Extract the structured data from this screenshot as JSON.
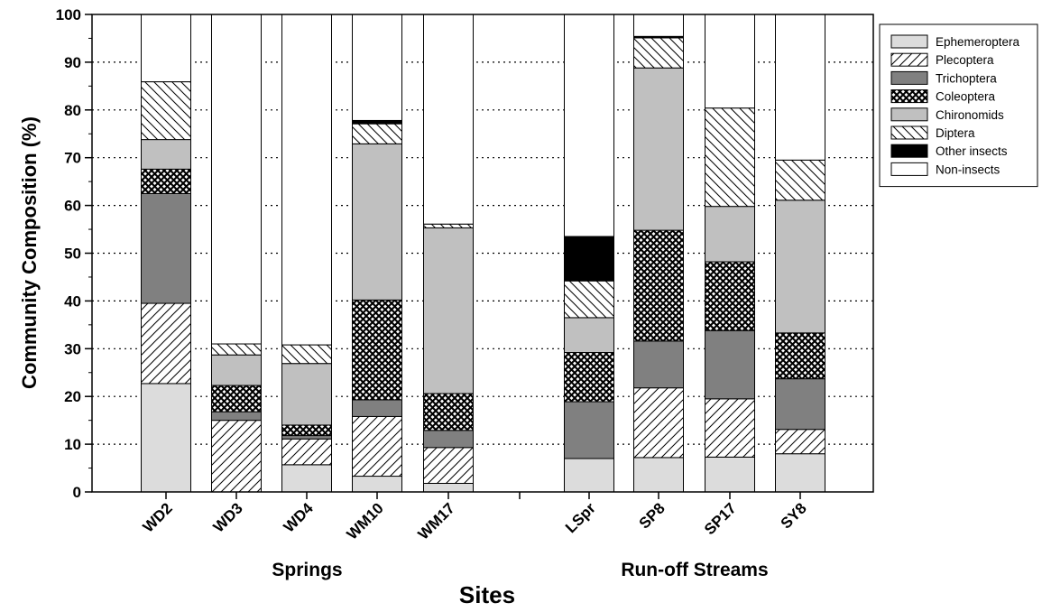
{
  "chart_data": {
    "type": "bar",
    "stacked": true,
    "ylabel": "Community Composition (%)",
    "xlabel": "Sites",
    "ylim": [
      0,
      100
    ],
    "yticks": [
      0,
      10,
      20,
      30,
      40,
      50,
      60,
      70,
      80,
      90,
      100
    ],
    "grid": "horizontal dotted",
    "legend_position": "right",
    "categories": [
      "WD2",
      "WD3",
      "WD4",
      "WM10",
      "WM17",
      "",
      "LSpr",
      "SP8",
      "SP17",
      "SY8"
    ],
    "groups": [
      {
        "label": "Springs",
        "categories": [
          "WD2",
          "WD3",
          "WD4",
          "WM10",
          "WM17"
        ]
      },
      {
        "label": "Run-off Streams",
        "categories": [
          "LSpr",
          "SP8",
          "SP17",
          "SY8"
        ]
      }
    ],
    "series": [
      {
        "name": "Ephemeroptera",
        "fill": "light-gray",
        "values": [
          22.7,
          0,
          5.7,
          3.3,
          1.8,
          null,
          7.0,
          7.2,
          7.3,
          8.0
        ]
      },
      {
        "name": "Plecoptera",
        "fill": "hatch-forward",
        "values": [
          16.8,
          15.0,
          5.4,
          12.5,
          7.5,
          null,
          0,
          14.6,
          12.2,
          5.1
        ]
      },
      {
        "name": "Trichoptera",
        "fill": "dark-gray",
        "values": [
          23.0,
          1.8,
          0.7,
          3.5,
          3.6,
          null,
          11.9,
          9.8,
          14.3,
          10.6
        ]
      },
      {
        "name": "Coleoptera",
        "fill": "cross-hatch",
        "values": [
          5.1,
          5.5,
          2.2,
          20.9,
          7.7,
          null,
          10.3,
          23.2,
          14.4,
          9.6
        ]
      },
      {
        "name": "Chironomids",
        "fill": "medium-gray",
        "values": [
          6.2,
          6.4,
          12.9,
          32.7,
          34.7,
          null,
          7.3,
          34.0,
          11.6,
          27.8
        ]
      },
      {
        "name": "Diptera",
        "fill": "hatch-backward",
        "values": [
          12.1,
          2.3,
          3.9,
          4.2,
          0.8,
          null,
          7.7,
          6.3,
          20.6,
          8.4
        ]
      },
      {
        "name": "Other insects",
        "fill": "black",
        "values": [
          0,
          0,
          0,
          0.7,
          0,
          null,
          9.3,
          0.3,
          0,
          0
        ]
      },
      {
        "name": "Non-insects",
        "fill": "white",
        "values": [
          14.1,
          69.0,
          69.2,
          22.2,
          43.9,
          null,
          46.5,
          4.6,
          19.6,
          30.5
        ]
      }
    ]
  }
}
